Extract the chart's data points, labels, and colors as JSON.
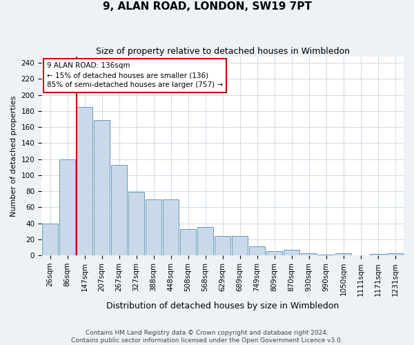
{
  "title": "9, ALAN ROAD, LONDON, SW19 7PT",
  "subtitle": "Size of property relative to detached houses in Wimbledon",
  "xlabel": "Distribution of detached houses by size in Wimbledon",
  "ylabel": "Number of detached properties",
  "bar_labels": [
    "26sqm",
    "86sqm",
    "147sqm",
    "207sqm",
    "267sqm",
    "327sqm",
    "388sqm",
    "448sqm",
    "508sqm",
    "568sqm",
    "629sqm",
    "689sqm",
    "749sqm",
    "809sqm",
    "870sqm",
    "930sqm",
    "990sqm",
    "1050sqm",
    "1111sqm",
    "1171sqm",
    "1231sqm"
  ],
  "bar_values": [
    40,
    120,
    185,
    169,
    113,
    79,
    70,
    70,
    33,
    35,
    24,
    24,
    11,
    5,
    7,
    3,
    1,
    3,
    0,
    2,
    3
  ],
  "bar_color": "#c9d9ea",
  "bar_edge_color": "#6699bb",
  "vline_color": "#cc0000",
  "vline_bar_index": 2,
  "annotation_text": "9 ALAN ROAD: 136sqm\n← 15% of detached houses are smaller (136)\n85% of semi-detached houses are larger (757) →",
  "annotation_box_facecolor": "#ffffff",
  "annotation_box_edgecolor": "#cc0000",
  "ylim": [
    0,
    248
  ],
  "yticks": [
    0,
    20,
    40,
    60,
    80,
    100,
    120,
    140,
    160,
    180,
    200,
    220,
    240
  ],
  "footer_line1": "Contains HM Land Registry data © Crown copyright and database right 2024.",
  "footer_line2": "Contains public sector information licensed under the Open Government Licence v3.0.",
  "background_color": "#edf2f7",
  "plot_background_color": "#ffffff",
  "grid_color": "#c8d4e0",
  "title_fontsize": 11,
  "subtitle_fontsize": 9,
  "ylabel_fontsize": 8,
  "xlabel_fontsize": 9,
  "tick_fontsize": 7.5,
  "annotation_fontsize": 7.5,
  "footer_fontsize": 6.5
}
